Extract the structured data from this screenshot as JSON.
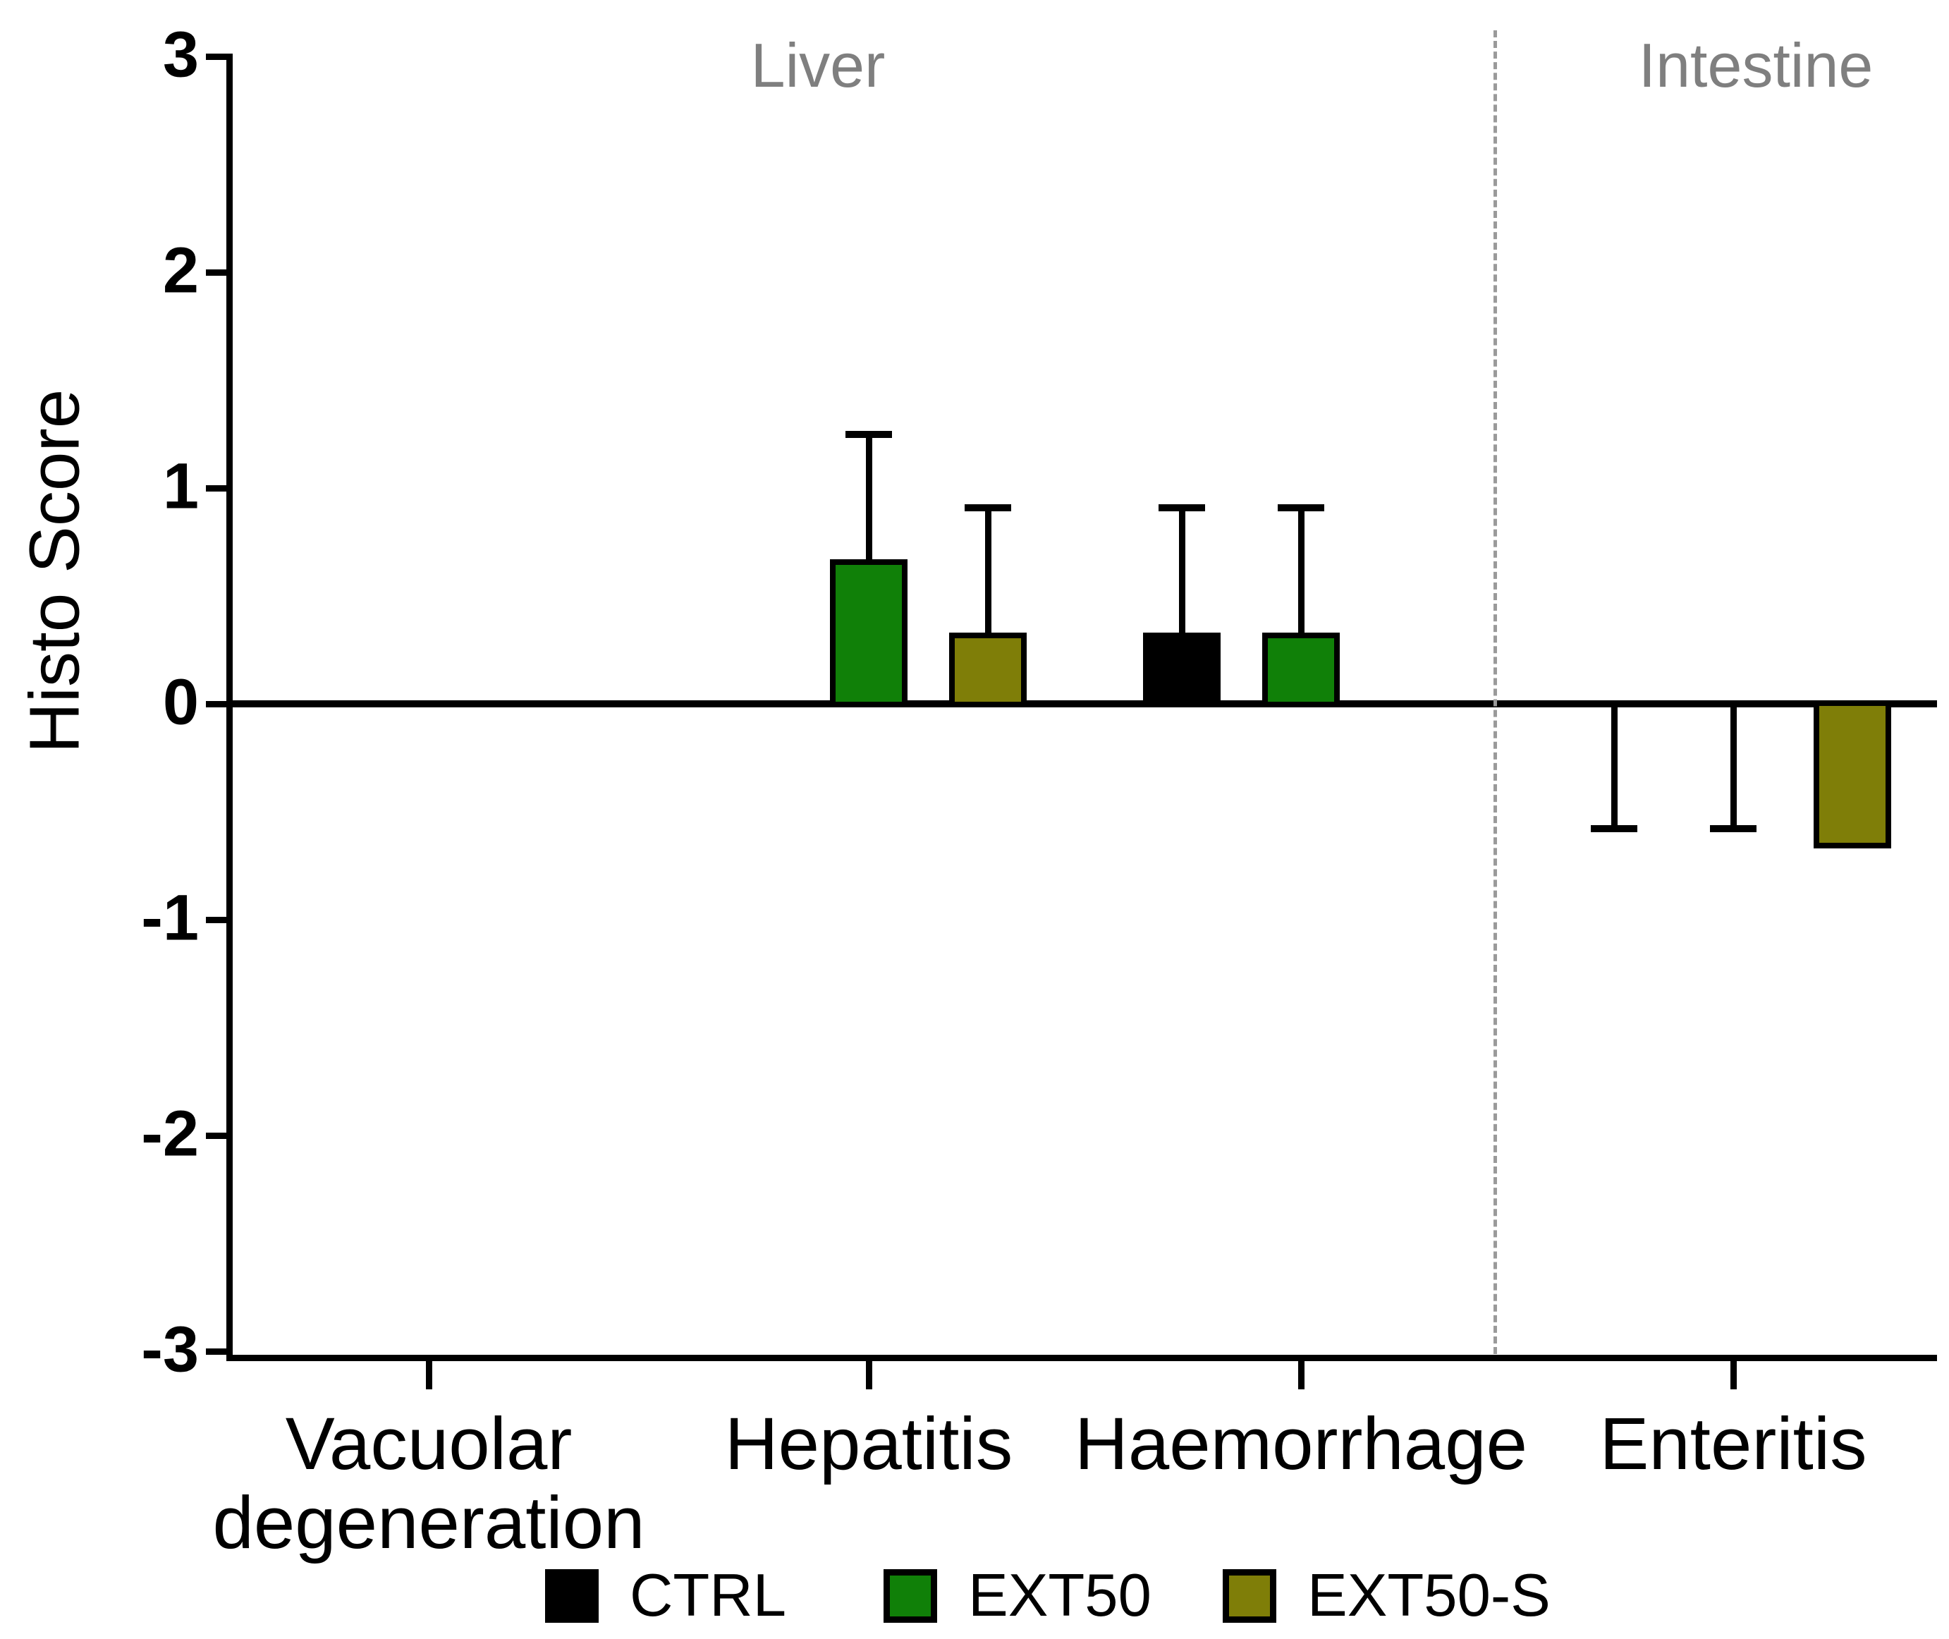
{
  "figure": {
    "background": "#ffffff",
    "text_color": "#000000",
    "region_text_color": "#7f7f7f"
  },
  "chart_data": {
    "type": "bar",
    "title": "",
    "xlabel": "",
    "ylabel": "Histo Score",
    "ylim": [
      -3,
      3
    ],
    "yticks": [
      3,
      2,
      1,
      0,
      -1,
      -2,
      -3
    ],
    "grid": "off",
    "legend_position": "bottom",
    "categories": [
      "Vacuolar\ndegeneration",
      "Hepatitis",
      "Haemorrhage",
      "Enteritis"
    ],
    "region_annotations": [
      {
        "label": "Liver",
        "applies_to": [
          "Vacuolar degeneration",
          "Hepatitis",
          "Haemorrhage"
        ]
      },
      {
        "label": "Intestine",
        "applies_to": [
          "Enteritis"
        ]
      }
    ],
    "separator_after_category": "Haemorrhage",
    "series": [
      {
        "name": "CTRL",
        "color": "#000000",
        "points": [
          {
            "mean": 0,
            "sd": null,
            "whisker": null
          },
          {
            "mean": 0,
            "sd": null,
            "whisker": null
          },
          {
            "mean": 0.33,
            "sd": 0.58,
            "whisker": "up"
          },
          {
            "mean": 0,
            "sd": 0.58,
            "whisker": "down"
          }
        ]
      },
      {
        "name": "EXT50",
        "color": "#108008",
        "points": [
          {
            "mean": 0,
            "sd": null,
            "whisker": null
          },
          {
            "mean": 0.67,
            "sd": 0.58,
            "whisker": "up"
          },
          {
            "mean": 0.33,
            "sd": 0.58,
            "whisker": "up"
          },
          {
            "mean": 0,
            "sd": 0.58,
            "whisker": "down"
          }
        ]
      },
      {
        "name": "EXT50-S",
        "color": "#7f7e08",
        "points": [
          {
            "mean": 0,
            "sd": null,
            "whisker": null
          },
          {
            "mean": 0.33,
            "sd": 0.58,
            "whisker": "up"
          },
          {
            "mean": 0,
            "sd": null,
            "whisker": null
          },
          {
            "mean": -0.67,
            "sd": null,
            "whisker": null
          }
        ]
      }
    ]
  }
}
